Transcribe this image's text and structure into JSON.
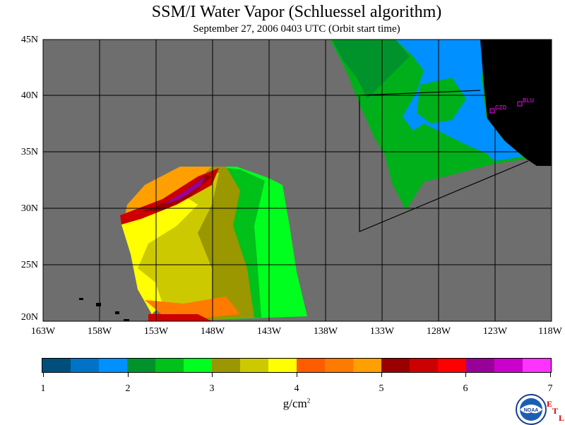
{
  "title": "SSM/I Water Vapor (Schluessel algorithm)",
  "subtitle": "September 27, 2006   0403 UTC   (Orbit start time)",
  "lat_labels": [
    "45N",
    "40N",
    "35N",
    "30N",
    "25N",
    "20N"
  ],
  "lon_labels": [
    "163W",
    "158W",
    "153W",
    "148W",
    "143W",
    "138W",
    "133W",
    "128W",
    "123W",
    "118W"
  ],
  "stations": [
    "CZD",
    "BLU"
  ],
  "colorbar": {
    "colors": [
      "#004f7a",
      "#0073c8",
      "#0090ff",
      "#00932c",
      "#00c01a",
      "#00ff1e",
      "#9a9700",
      "#cdc900",
      "#ffff00",
      "#ff5c00",
      "#ff7a00",
      "#ff9f00",
      "#9a0000",
      "#cc0000",
      "#ff0000",
      "#990099",
      "#cc00cc",
      "#ff33ff"
    ],
    "tick_labels": [
      "1",
      "2",
      "3",
      "4",
      "5",
      "6",
      "7"
    ]
  },
  "units": "g/cm",
  "units_sup": "2",
  "logo_text": "NOAA",
  "etl": [
    "E",
    "T",
    "L"
  ],
  "colors": {
    "no_data": "#6e6e6e",
    "land": "#000000",
    "station": "#ff00ff"
  }
}
